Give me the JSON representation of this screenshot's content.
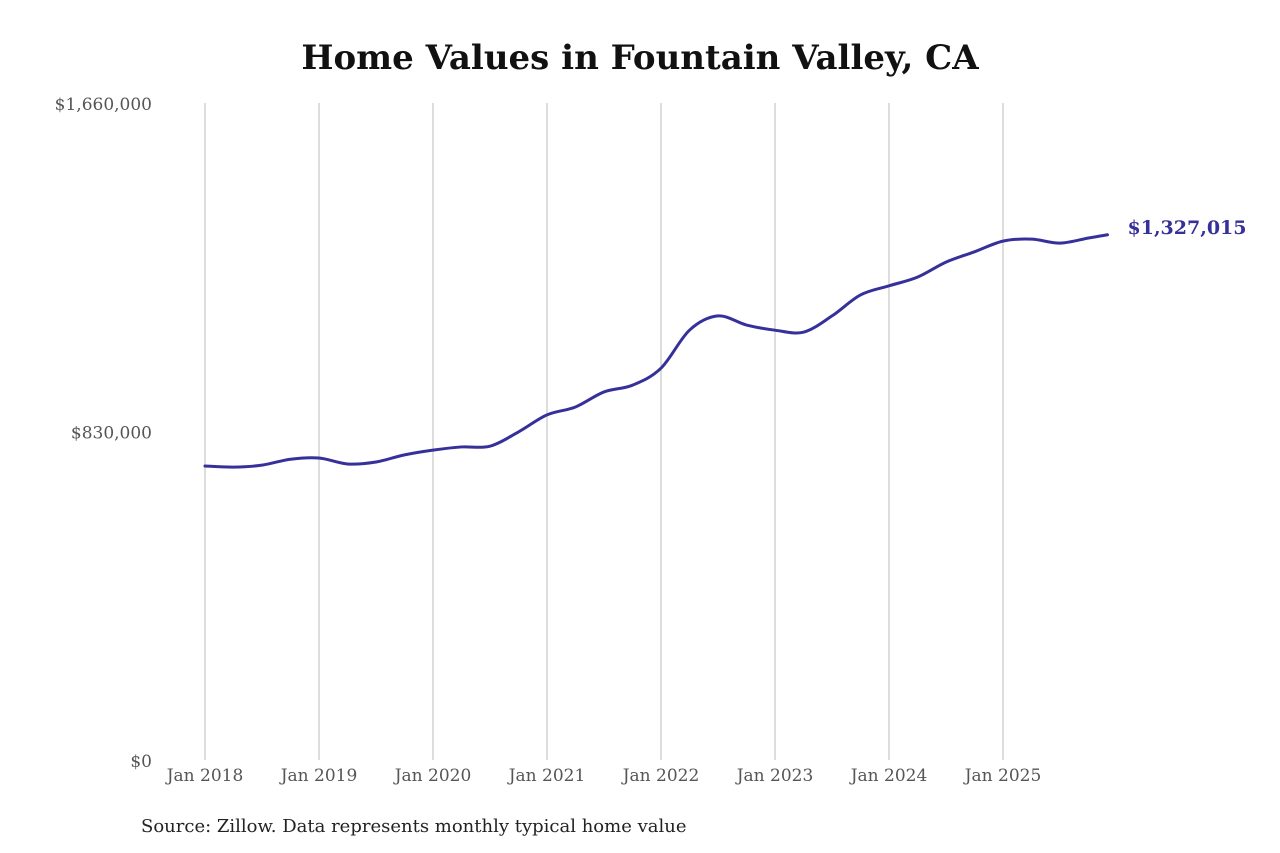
{
  "chart_data": {
    "type": "line",
    "title": "Home Values in Fountain Valley, CA",
    "source": "Source: Zillow. Data represents monthly typical home value",
    "ylim": [
      0,
      1660000
    ],
    "y_ticks": [
      0,
      830000,
      1660000
    ],
    "y_tick_labels": [
      "$0",
      "$830,000",
      "$1,660,000"
    ],
    "x_ticks": [
      "2018-01",
      "2019-01",
      "2020-01",
      "2021-01",
      "2022-01",
      "2023-01",
      "2024-01",
      "2025-01"
    ],
    "x_tick_labels": [
      "Jan 2018",
      "Jan 2019",
      "Jan 2020",
      "Jan 2021",
      "Jan 2022",
      "Jan 2023",
      "Jan 2024",
      "Jan 2025"
    ],
    "grid": "vertical",
    "line_color": "#36309a",
    "end_label": "$1,327,015",
    "series": [
      {
        "x": [
          "2018-01",
          "2018-04",
          "2018-07",
          "2018-10",
          "2019-01",
          "2019-04",
          "2019-07",
          "2019-10",
          "2020-01",
          "2020-04",
          "2020-07",
          "2020-10",
          "2021-01",
          "2021-04",
          "2021-07",
          "2021-10",
          "2022-01",
          "2022-04",
          "2022-07",
          "2022-10",
          "2023-01",
          "2023-04",
          "2023-07",
          "2023-10",
          "2024-01",
          "2024-04",
          "2024-07",
          "2024-10",
          "2025-01",
          "2025-04",
          "2025-07",
          "2025-10",
          "2025-12"
        ],
        "values": [
          742800,
          740000,
          745000,
          760000,
          763000,
          748000,
          753000,
          771000,
          783000,
          791000,
          793000,
          829000,
          872000,
          892000,
          930000,
          947000,
          990000,
          1086000,
          1122000,
          1099000,
          1086000,
          1081000,
          1122000,
          1175000,
          1198000,
          1220000,
          1258000,
          1284000,
          1311000,
          1316000,
          1306000,
          1319000,
          1327015
        ]
      }
    ]
  }
}
